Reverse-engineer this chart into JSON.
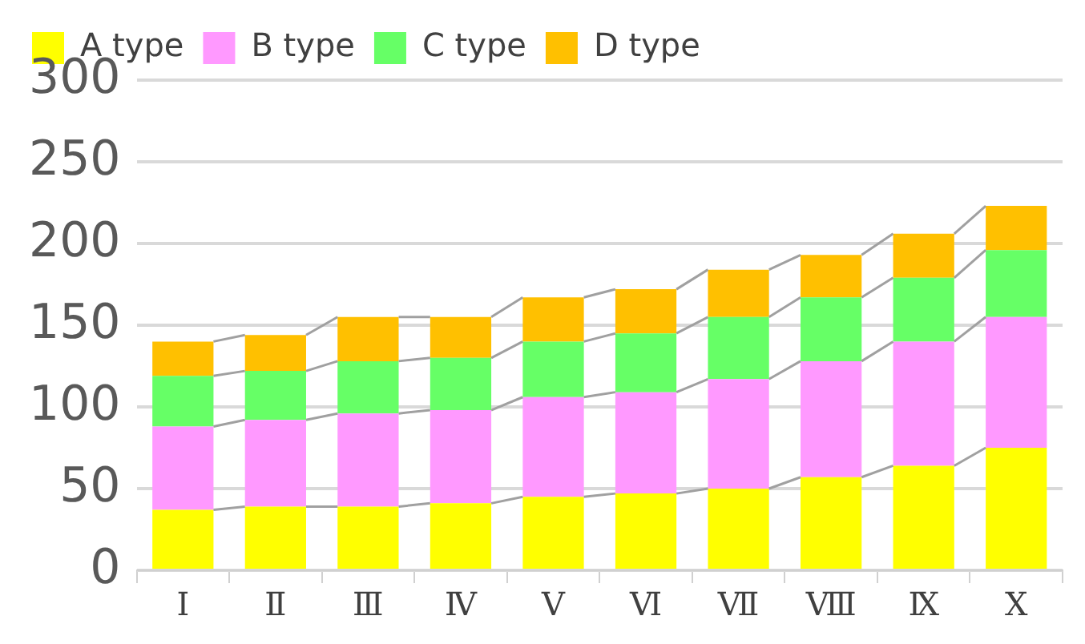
{
  "chart_data": {
    "type": "bar",
    "stacked": true,
    "categories": [
      "Ⅰ",
      "Ⅱ",
      "Ⅲ",
      "Ⅳ",
      "Ⅴ",
      "Ⅵ",
      "Ⅶ",
      "Ⅷ",
      "Ⅸ",
      "Ⅹ"
    ],
    "series": [
      {
        "name": "A type",
        "color": "#ffff00",
        "values": [
          37,
          39,
          39,
          41,
          45,
          47,
          50,
          57,
          64,
          75
        ]
      },
      {
        "name": "B type",
        "color": "#ff99ff",
        "values": [
          51,
          53,
          57,
          57,
          61,
          62,
          67,
          71,
          76,
          80
        ]
      },
      {
        "name": "C type",
        "color": "#66ff66",
        "values": [
          31,
          30,
          32,
          32,
          34,
          36,
          38,
          39,
          39,
          41
        ]
      },
      {
        "name": "D type",
        "color": "#ffc000",
        "values": [
          21,
          22,
          27,
          25,
          27,
          27,
          29,
          26,
          27,
          27
        ]
      }
    ],
    "ylim": [
      0,
      300
    ],
    "yticks": [
      0,
      50,
      100,
      150,
      200,
      250,
      300
    ],
    "grid": "y",
    "legend": "top left"
  }
}
